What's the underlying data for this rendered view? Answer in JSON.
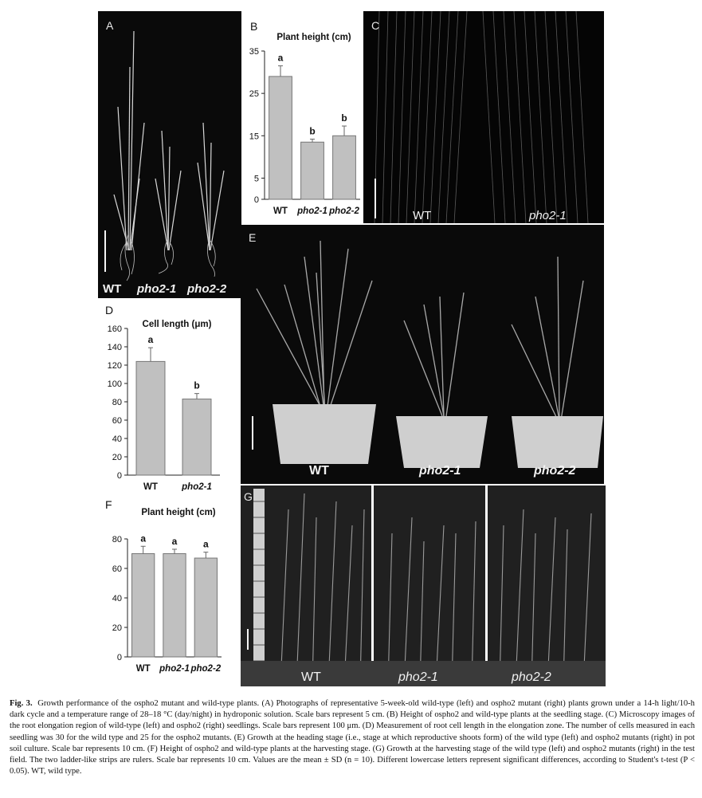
{
  "panels": {
    "A": {
      "label": "A",
      "tags": [
        "WT",
        "pho2-1",
        "pho2-2"
      ]
    },
    "C": {
      "label": "C",
      "tags": [
        "WT",
        "pho2-1"
      ]
    },
    "E": {
      "label": "E",
      "tags": [
        "WT",
        "pho2-1",
        "pho2-2"
      ]
    },
    "G": {
      "label": "G",
      "tags": [
        "WT",
        "pho2-1",
        "pho2-2"
      ]
    }
  },
  "chart_data": [
    {
      "panel": "B",
      "type": "bar",
      "title": "Plant height (cm)",
      "categories": [
        "WT",
        "pho2-1",
        "pho2-2"
      ],
      "values": [
        29,
        13.5,
        15
      ],
      "errors": [
        2.5,
        0.7,
        2.3
      ],
      "letters": [
        "a",
        "b",
        "b"
      ],
      "ylim": [
        0,
        35
      ],
      "yticks": [
        0,
        5,
        15,
        25,
        35
      ],
      "colors": {
        "bar": "#c0c0c0",
        "edge": "#777777"
      }
    },
    {
      "panel": "D",
      "type": "bar",
      "title": "Cell length (μm)",
      "categories": [
        "WT",
        "pho2-1"
      ],
      "values": [
        124,
        83
      ],
      "errors": [
        15,
        6
      ],
      "letters": [
        "a",
        "b"
      ],
      "ylim": [
        0,
        160
      ],
      "yticks": [
        0,
        20,
        40,
        60,
        80,
        100,
        120,
        140,
        160
      ],
      "colors": {
        "bar": "#c0c0c0",
        "edge": "#777777"
      }
    },
    {
      "panel": "F",
      "type": "bar",
      "title": "Plant height (cm)",
      "categories": [
        "WT",
        "pho2-1",
        "pho2-2"
      ],
      "values": [
        70,
        70,
        67
      ],
      "errors": [
        5,
        3,
        4
      ],
      "letters": [
        "a",
        "a",
        "a"
      ],
      "ylim": [
        0,
        80
      ],
      "yticks": [
        0,
        20,
        40,
        60,
        80
      ],
      "colors": {
        "bar": "#c0c0c0",
        "edge": "#777777"
      }
    }
  ],
  "caption": {
    "label": "Fig. 3.",
    "text": "Growth performance of the ospho2 mutant and wild-type plants. (A) Photographs of representative 5-week-old wild-type (left) and ospho2 mutant (right) plants grown under a 14-h light/10-h dark cycle and a temperature range of 28–18 °C (day/night) in hydroponic solution. Scale bars represent 5 cm. (B) Height of ospho2 and wild-type plants at the seedling stage. (C) Microscopy images of the root elongation region of wild-type (left) and ospho2 (right) seedlings. Scale bars represent 100 μm. (D) Measurement of root cell length in the elongation zone. The number of cells measured in each seedling was 30 for the wild type and 25 for the ospho2 mutants. (E) Growth at the heading stage (i.e., stage at which reproductive shoots form) of the wild type (left) and ospho2 mutants (right) in pot soil culture. Scale bar represents 10 cm. (F) Height of ospho2 and wild-type plants at the harvesting stage. (G) Growth at the harvesting stage of the wild type (left) and ospho2 mutants (right) in the test field. The two ladder-like strips are rulers. Scale bar represents 10 cm. Values are the mean ± SD (n = 10). Different lowercase letters represent significant differences, according to Student's t-test (P < 0.05). WT, wild type."
  }
}
